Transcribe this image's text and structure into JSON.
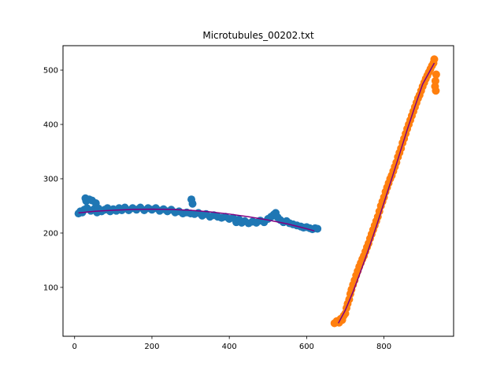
{
  "chart_data": {
    "type": "scatter",
    "title": "Microtubules_00202.txt",
    "xlabel": "",
    "ylabel": "",
    "xlim": [
      -30,
      980
    ],
    "ylim": [
      10,
      545
    ],
    "xticks": [
      0,
      200,
      400,
      600,
      800
    ],
    "yticks": [
      100,
      200,
      300,
      400,
      500
    ],
    "grid": false,
    "legend": "none",
    "colors": {
      "series_a": "#1f77b4",
      "series_b": "#ff7f0e",
      "fit": "#800080"
    },
    "series": [
      {
        "kind": "scatter",
        "color": "#1f77b4",
        "points": [
          [
            10,
            236
          ],
          [
            15,
            240
          ],
          [
            20,
            238
          ],
          [
            25,
            243
          ],
          [
            28,
            264
          ],
          [
            30,
            259
          ],
          [
            32,
            246
          ],
          [
            38,
            262
          ],
          [
            42,
            241
          ],
          [
            45,
            260
          ],
          [
            50,
            244
          ],
          [
            55,
            255
          ],
          [
            58,
            238
          ],
          [
            62,
            245
          ],
          [
            70,
            240
          ],
          [
            78,
            243
          ],
          [
            85,
            246
          ],
          [
            92,
            240
          ],
          [
            100,
            244
          ],
          [
            108,
            241
          ],
          [
            115,
            246
          ],
          [
            122,
            242
          ],
          [
            130,
            247
          ],
          [
            140,
            242
          ],
          [
            150,
            246
          ],
          [
            160,
            243
          ],
          [
            170,
            247
          ],
          [
            180,
            242
          ],
          [
            190,
            246
          ],
          [
            200,
            243
          ],
          [
            210,
            246
          ],
          [
            220,
            241
          ],
          [
            230,
            244
          ],
          [
            240,
            240
          ],
          [
            250,
            243
          ],
          [
            260,
            238
          ],
          [
            270,
            240
          ],
          [
            280,
            236
          ],
          [
            290,
            238
          ],
          [
            300,
            236
          ],
          [
            302,
            262
          ],
          [
            305,
            254
          ],
          [
            310,
            235
          ],
          [
            320,
            237
          ],
          [
            330,
            232
          ],
          [
            340,
            235
          ],
          [
            350,
            230
          ],
          [
            360,
            233
          ],
          [
            370,
            230
          ],
          [
            380,
            228
          ],
          [
            390,
            230
          ],
          [
            400,
            226
          ],
          [
            410,
            228
          ],
          [
            418,
            220
          ],
          [
            425,
            225
          ],
          [
            432,
            219
          ],
          [
            440,
            222
          ],
          [
            450,
            218
          ],
          [
            460,
            221
          ],
          [
            470,
            219
          ],
          [
            480,
            223
          ],
          [
            490,
            220
          ],
          [
            500,
            226
          ],
          [
            508,
            230
          ],
          [
            515,
            234
          ],
          [
            520,
            237
          ],
          [
            525,
            229
          ],
          [
            532,
            224
          ],
          [
            540,
            220
          ],
          [
            548,
            222
          ],
          [
            556,
            218
          ],
          [
            565,
            216
          ],
          [
            575,
            214
          ],
          [
            585,
            212
          ],
          [
            592,
            210
          ],
          [
            600,
            211
          ],
          [
            608,
            209
          ],
          [
            615,
            207
          ],
          [
            622,
            209
          ],
          [
            628,
            208
          ]
        ]
      },
      {
        "kind": "scatter",
        "color": "#ff7f0e",
        "points": [
          [
            672,
            34
          ],
          [
            678,
            38
          ],
          [
            684,
            35
          ],
          [
            688,
            42
          ],
          [
            692,
            40
          ],
          [
            696,
            48
          ],
          [
            700,
            52
          ],
          [
            703,
            62
          ],
          [
            706,
            70
          ],
          [
            710,
            78
          ],
          [
            713,
            88
          ],
          [
            716,
            96
          ],
          [
            720,
            105
          ],
          [
            724,
            113
          ],
          [
            728,
            122
          ],
          [
            732,
            130
          ],
          [
            736,
            138
          ],
          [
            740,
            145
          ],
          [
            744,
            152
          ],
          [
            748,
            158
          ],
          [
            752,
            166
          ],
          [
            756,
            174
          ],
          [
            760,
            181
          ],
          [
            764,
            190
          ],
          [
            768,
            198
          ],
          [
            772,
            206
          ],
          [
            776,
            214
          ],
          [
            780,
            222
          ],
          [
            784,
            230
          ],
          [
            788,
            240
          ],
          [
            792,
            250
          ],
          [
            796,
            258
          ],
          [
            800,
            266
          ],
          [
            804,
            276
          ],
          [
            808,
            284
          ],
          [
            812,
            292
          ],
          [
            816,
            300
          ],
          [
            820,
            306
          ],
          [
            824,
            314
          ],
          [
            828,
            322
          ],
          [
            832,
            330
          ],
          [
            836,
            340
          ],
          [
            840,
            348
          ],
          [
            844,
            356
          ],
          [
            848,
            366
          ],
          [
            852,
            374
          ],
          [
            856,
            383
          ],
          [
            860,
            392
          ],
          [
            864,
            400
          ],
          [
            868,
            408
          ],
          [
            872,
            416
          ],
          [
            876,
            424
          ],
          [
            880,
            432
          ],
          [
            884,
            440
          ],
          [
            888,
            448
          ],
          [
            892,
            454
          ],
          [
            896,
            462
          ],
          [
            900,
            470
          ],
          [
            904,
            477
          ],
          [
            908,
            484
          ],
          [
            912,
            490
          ],
          [
            916,
            496
          ],
          [
            920,
            502
          ],
          [
            924,
            508
          ],
          [
            928,
            513
          ],
          [
            930,
            520
          ],
          [
            932,
            470
          ],
          [
            933,
            480
          ],
          [
            934,
            462
          ],
          [
            935,
            492
          ]
        ]
      },
      {
        "kind": "line",
        "color": "#800080",
        "points": [
          [
            10,
            237
          ],
          [
            50,
            240
          ],
          [
            100,
            242
          ],
          [
            150,
            243.5
          ],
          [
            200,
            244
          ],
          [
            250,
            243.5
          ],
          [
            300,
            242
          ],
          [
            350,
            239
          ],
          [
            400,
            235
          ],
          [
            450,
            230
          ],
          [
            500,
            224
          ],
          [
            550,
            217
          ],
          [
            600,
            208
          ],
          [
            620,
            204
          ]
        ]
      },
      {
        "kind": "line",
        "color": "#800080",
        "points": [
          [
            682,
            34
          ],
          [
            700,
            58
          ],
          [
            720,
            92
          ],
          [
            740,
            130
          ],
          [
            760,
            170
          ],
          [
            780,
            212
          ],
          [
            800,
            256
          ],
          [
            820,
            300
          ],
          [
            840,
            345
          ],
          [
            860,
            390
          ],
          [
            880,
            433
          ],
          [
            900,
            474
          ],
          [
            920,
            500
          ],
          [
            930,
            513
          ]
        ]
      }
    ]
  }
}
